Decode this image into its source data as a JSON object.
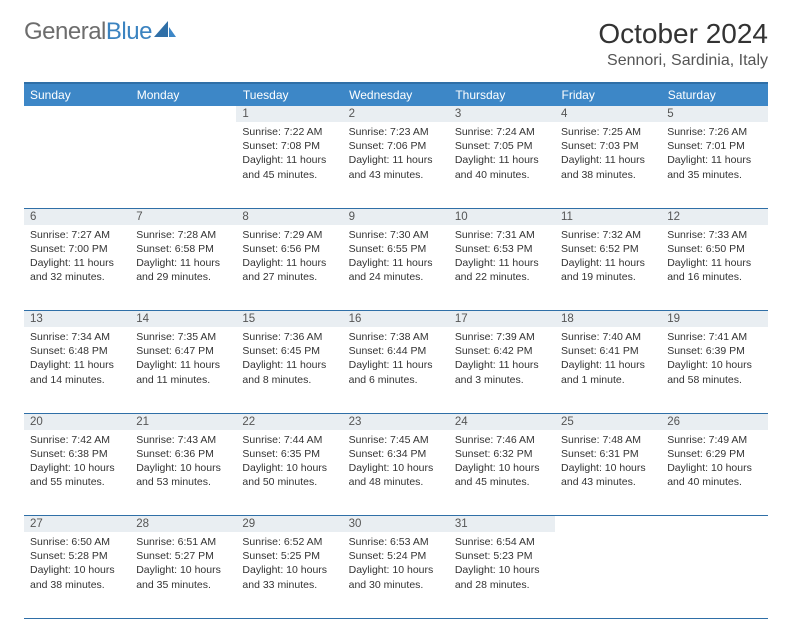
{
  "brand": {
    "part1": "General",
    "part2": "Blue"
  },
  "title": "October 2024",
  "location": "Sennori, Sardinia, Italy",
  "colors": {
    "header_bg": "#3d87c7",
    "header_border": "#2f6fa7",
    "daynum_bg": "#e9eef2",
    "text": "#333333",
    "logo_gray": "#6d6d6d",
    "logo_blue": "#3b83c0"
  },
  "dayNames": [
    "Sunday",
    "Monday",
    "Tuesday",
    "Wednesday",
    "Thursday",
    "Friday",
    "Saturday"
  ],
  "weeks": [
    [
      null,
      null,
      {
        "n": "1",
        "sr": "7:22 AM",
        "ss": "7:08 PM",
        "dl": "11 hours and 45 minutes."
      },
      {
        "n": "2",
        "sr": "7:23 AM",
        "ss": "7:06 PM",
        "dl": "11 hours and 43 minutes."
      },
      {
        "n": "3",
        "sr": "7:24 AM",
        "ss": "7:05 PM",
        "dl": "11 hours and 40 minutes."
      },
      {
        "n": "4",
        "sr": "7:25 AM",
        "ss": "7:03 PM",
        "dl": "11 hours and 38 minutes."
      },
      {
        "n": "5",
        "sr": "7:26 AM",
        "ss": "7:01 PM",
        "dl": "11 hours and 35 minutes."
      }
    ],
    [
      {
        "n": "6",
        "sr": "7:27 AM",
        "ss": "7:00 PM",
        "dl": "11 hours and 32 minutes."
      },
      {
        "n": "7",
        "sr": "7:28 AM",
        "ss": "6:58 PM",
        "dl": "11 hours and 29 minutes."
      },
      {
        "n": "8",
        "sr": "7:29 AM",
        "ss": "6:56 PM",
        "dl": "11 hours and 27 minutes."
      },
      {
        "n": "9",
        "sr": "7:30 AM",
        "ss": "6:55 PM",
        "dl": "11 hours and 24 minutes."
      },
      {
        "n": "10",
        "sr": "7:31 AM",
        "ss": "6:53 PM",
        "dl": "11 hours and 22 minutes."
      },
      {
        "n": "11",
        "sr": "7:32 AM",
        "ss": "6:52 PM",
        "dl": "11 hours and 19 minutes."
      },
      {
        "n": "12",
        "sr": "7:33 AM",
        "ss": "6:50 PM",
        "dl": "11 hours and 16 minutes."
      }
    ],
    [
      {
        "n": "13",
        "sr": "7:34 AM",
        "ss": "6:48 PM",
        "dl": "11 hours and 14 minutes."
      },
      {
        "n": "14",
        "sr": "7:35 AM",
        "ss": "6:47 PM",
        "dl": "11 hours and 11 minutes."
      },
      {
        "n": "15",
        "sr": "7:36 AM",
        "ss": "6:45 PM",
        "dl": "11 hours and 8 minutes."
      },
      {
        "n": "16",
        "sr": "7:38 AM",
        "ss": "6:44 PM",
        "dl": "11 hours and 6 minutes."
      },
      {
        "n": "17",
        "sr": "7:39 AM",
        "ss": "6:42 PM",
        "dl": "11 hours and 3 minutes."
      },
      {
        "n": "18",
        "sr": "7:40 AM",
        "ss": "6:41 PM",
        "dl": "11 hours and 1 minute."
      },
      {
        "n": "19",
        "sr": "7:41 AM",
        "ss": "6:39 PM",
        "dl": "10 hours and 58 minutes."
      }
    ],
    [
      {
        "n": "20",
        "sr": "7:42 AM",
        "ss": "6:38 PM",
        "dl": "10 hours and 55 minutes."
      },
      {
        "n": "21",
        "sr": "7:43 AM",
        "ss": "6:36 PM",
        "dl": "10 hours and 53 minutes."
      },
      {
        "n": "22",
        "sr": "7:44 AM",
        "ss": "6:35 PM",
        "dl": "10 hours and 50 minutes."
      },
      {
        "n": "23",
        "sr": "7:45 AM",
        "ss": "6:34 PM",
        "dl": "10 hours and 48 minutes."
      },
      {
        "n": "24",
        "sr": "7:46 AM",
        "ss": "6:32 PM",
        "dl": "10 hours and 45 minutes."
      },
      {
        "n": "25",
        "sr": "7:48 AM",
        "ss": "6:31 PM",
        "dl": "10 hours and 43 minutes."
      },
      {
        "n": "26",
        "sr": "7:49 AM",
        "ss": "6:29 PM",
        "dl": "10 hours and 40 minutes."
      }
    ],
    [
      {
        "n": "27",
        "sr": "6:50 AM",
        "ss": "5:28 PM",
        "dl": "10 hours and 38 minutes."
      },
      {
        "n": "28",
        "sr": "6:51 AM",
        "ss": "5:27 PM",
        "dl": "10 hours and 35 minutes."
      },
      {
        "n": "29",
        "sr": "6:52 AM",
        "ss": "5:25 PM",
        "dl": "10 hours and 33 minutes."
      },
      {
        "n": "30",
        "sr": "6:53 AM",
        "ss": "5:24 PM",
        "dl": "10 hours and 30 minutes."
      },
      {
        "n": "31",
        "sr": "6:54 AM",
        "ss": "5:23 PM",
        "dl": "10 hours and 28 minutes."
      },
      null,
      null
    ]
  ]
}
